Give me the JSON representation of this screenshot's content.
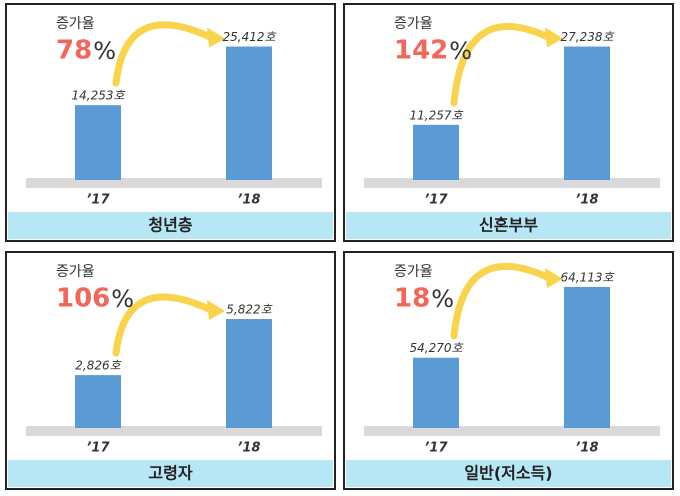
{
  "chart_data": [
    {
      "type": "bar",
      "title": "청년층",
      "annotation": "증가율",
      "growth": 78,
      "growth_unit": "%",
      "categories": [
        "’17",
        "’18"
      ],
      "values": [
        14253,
        25412
      ],
      "value_labels": [
        "14,253호",
        "25,412호"
      ],
      "color": "#5b9bd5",
      "ylim": [
        0,
        27800
      ]
    },
    {
      "type": "bar",
      "title": "신혼부부",
      "annotation": "증가율",
      "growth": 142,
      "growth_unit": "%",
      "categories": [
        "’17",
        "’18"
      ],
      "values": [
        11257,
        27238
      ],
      "value_labels": [
        "11,257호",
        "27,238호"
      ],
      "color": "#5b9bd5",
      "ylim": [
        0,
        29800
      ]
    },
    {
      "type": "bar",
      "title": "고령자",
      "annotation": "증가율",
      "growth": 106,
      "growth_unit": "%",
      "categories": [
        "’17",
        "’18"
      ],
      "values": [
        2826,
        5822
      ],
      "value_labels": [
        "2,826호",
        "5,822호"
      ],
      "color": "#5b9bd5",
      "ylim": [
        0,
        7800
      ]
    },
    {
      "type": "bar",
      "title": "일반(저소득)",
      "annotation": "증가율",
      "growth": 18,
      "growth_unit": "%",
      "categories": [
        "’17",
        "’18"
      ],
      "values": [
        54270,
        64113
      ],
      "value_labels": [
        "54,270호",
        "64,113호"
      ],
      "color": "#5b9bd5",
      "ylim": [
        44500,
        64800
      ]
    }
  ]
}
